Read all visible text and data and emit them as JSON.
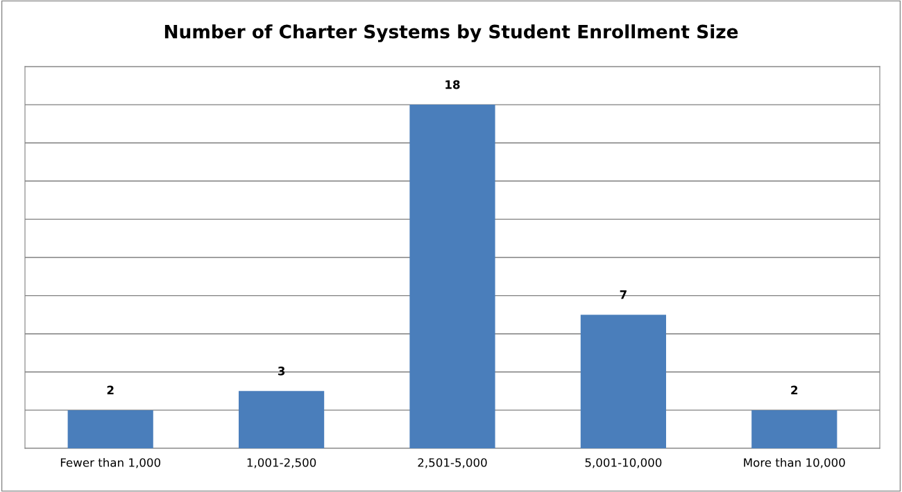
{
  "chart_data": {
    "type": "bar",
    "title": "Number of Charter Systems by Student Enrollment Size",
    "categories": [
      "Fewer than 1,000",
      "1,001-2,500",
      "2,501-5,000",
      "5,001-10,000",
      "More than 10,000"
    ],
    "values": [
      2,
      3,
      18,
      7,
      2
    ],
    "color": "#4a7ebb",
    "ylim": [
      0,
      20
    ],
    "yticks": [
      0,
      2,
      4,
      6,
      8,
      10,
      12,
      14,
      16,
      18,
      20
    ],
    "grid": "y",
    "tick_labels": "x",
    "data_labels": true
  }
}
